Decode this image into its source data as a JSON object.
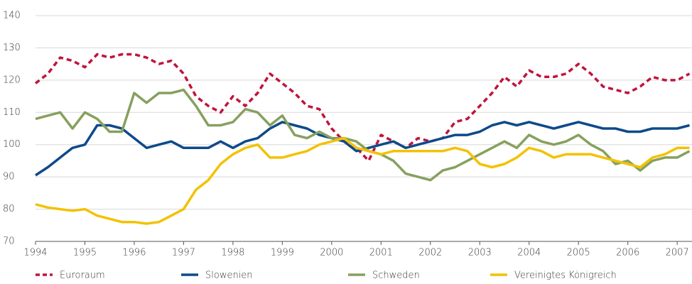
{
  "chart_data": {
    "type": "line",
    "x": [
      1994,
      1994.25,
      1994.5,
      1994.75,
      1995,
      1995.25,
      1995.5,
      1995.75,
      1996,
      1996.25,
      1996.5,
      1996.75,
      1997,
      1997.25,
      1997.5,
      1997.75,
      1998,
      1998.25,
      1998.5,
      1998.75,
      1999,
      1999.25,
      1999.5,
      1999.75,
      2000,
      2000.25,
      2000.5,
      2000.75,
      2001,
      2001.25,
      2001.5,
      2001.75,
      2002,
      2002.25,
      2002.5,
      2002.75,
      2003,
      2003.25,
      2003.5,
      2003.75,
      2004,
      2004.25,
      2004.5,
      2004.75,
      2005,
      2005.25,
      2005.5,
      2005.75,
      2006,
      2006.25,
      2006.5,
      2006.75,
      2007,
      2007.25
    ],
    "series": [
      {
        "name": "Euroraum",
        "color": "#c0143c",
        "dashed": true,
        "values": [
          119,
          122,
          127,
          126,
          124,
          128,
          127,
          128,
          128,
          127,
          125,
          126,
          122,
          115,
          112,
          110,
          115,
          112,
          116,
          122,
          119,
          116,
          112,
          111,
          105,
          101,
          99,
          95,
          103,
          101,
          99,
          102,
          101,
          102,
          107,
          108,
          112,
          116,
          121,
          118,
          123,
          121,
          121,
          122,
          125,
          122,
          118,
          117,
          116,
          118,
          121,
          120,
          120,
          122
        ]
      },
      {
        "name": "Slowenien",
        "color": "#0d4a8a",
        "values": [
          90.5,
          93,
          96,
          99,
          100,
          106,
          106,
          105,
          102,
          99,
          100,
          101,
          99,
          99,
          99,
          101,
          99,
          101,
          102,
          105,
          107,
          106,
          105,
          103,
          102,
          101,
          98,
          99,
          100,
          101,
          99,
          100,
          101,
          102,
          103,
          103,
          104,
          106,
          107,
          106,
          107,
          106,
          105,
          106,
          107,
          106,
          105,
          105,
          104,
          104,
          105,
          105,
          105,
          106
        ]
      },
      {
        "name": "Schweden",
        "color": "#87a05e",
        "values": [
          108,
          109,
          110,
          105,
          110,
          108,
          104,
          104,
          116,
          113,
          116,
          116,
          117,
          112,
          106,
          106,
          107,
          111,
          110,
          106,
          109,
          103,
          102,
          104,
          102,
          102,
          101,
          98,
          97,
          95,
          91,
          90,
          89,
          92,
          93,
          95,
          97,
          99,
          101,
          99,
          103,
          101,
          100,
          101,
          103,
          100,
          98,
          94,
          95,
          92,
          95,
          96,
          96,
          98
        ]
      },
      {
        "name": "Vereinigtes Königreich",
        "color": "#f2c200",
        "values": [
          81.5,
          80.5,
          80,
          79.5,
          80,
          78,
          77,
          76,
          76,
          75.5,
          76,
          78,
          80,
          86,
          89,
          94,
          97,
          99,
          100,
          96,
          96,
          97,
          98,
          100,
          101,
          102,
          99,
          98,
          97,
          98,
          98,
          98,
          98,
          98,
          99,
          98,
          94,
          93,
          94,
          96,
          99,
          98,
          96,
          97,
          97,
          97,
          96,
          95,
          94,
          93,
          96,
          97,
          99,
          99
        ]
      }
    ],
    "xlim": [
      1994,
      2007.3
    ],
    "xticks": [
      1994,
      1995,
      1996,
      1997,
      1998,
      1999,
      2000,
      2001,
      2002,
      2003,
      2004,
      2005,
      2006,
      2007
    ],
    "ylim": [
      70,
      140
    ],
    "yticks": [
      70,
      80,
      90,
      100,
      110,
      120,
      130,
      140
    ],
    "grid": true
  }
}
